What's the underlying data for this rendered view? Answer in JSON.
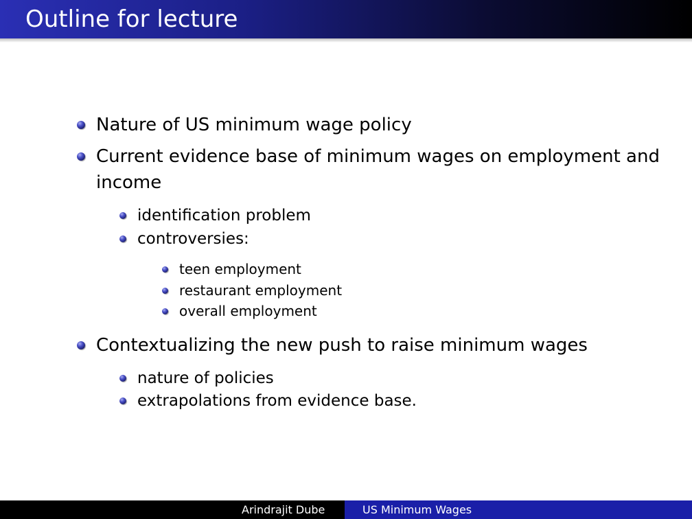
{
  "slide": {
    "title": "Outline for lecture",
    "colors": {
      "title_bar": "#1b1f86",
      "bullet": "#2a2fb4",
      "footer_accent": "#1a1fa8"
    },
    "items": [
      {
        "text": "Nature of US minimum wage policy"
      },
      {
        "text_line1": "Current evidence base of minimum wages on employment and",
        "text_line2": "income",
        "subitems": [
          {
            "text": "identification problem"
          },
          {
            "text": "controversies:",
            "subitems": [
              {
                "text": "teen employment"
              },
              {
                "text": "restaurant employment"
              },
              {
                "text": "overall employment"
              }
            ]
          }
        ]
      },
      {
        "text": "Contextualizing the new push to raise minimum wages",
        "subitems": [
          {
            "text": "nature of policies"
          },
          {
            "text": "extrapolations from evidence base."
          }
        ]
      }
    ]
  },
  "footer": {
    "author": "Arindrajit Dube",
    "short_title": "US Minimum Wages"
  }
}
